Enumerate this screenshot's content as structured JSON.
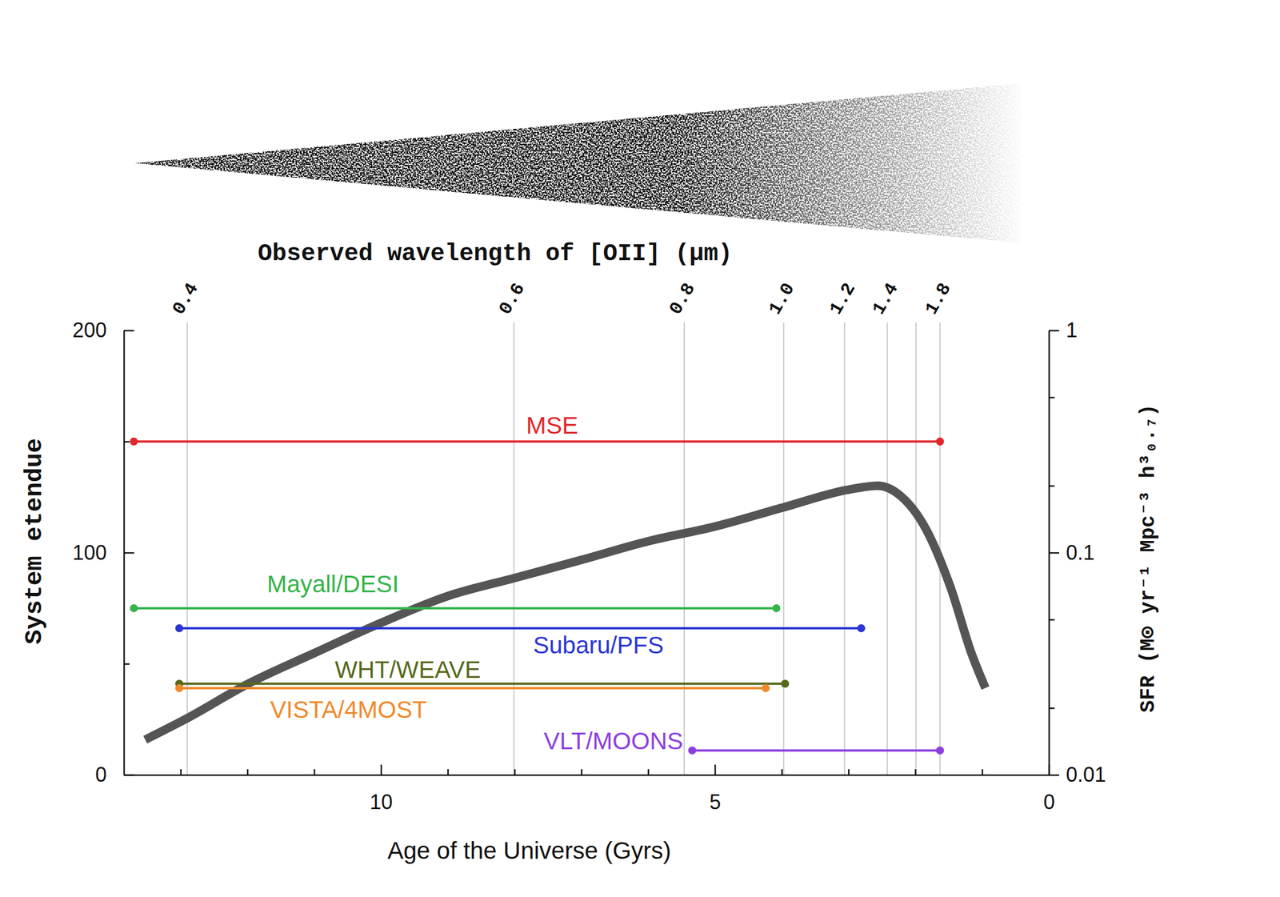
{
  "chart_data": {
    "type": "line",
    "xlabel": "Age of the Universe (Gyrs)",
    "ylabel": "System etendue",
    "y2label": "SFR (M⊙ yr⁻¹ Mpc⁻³ h³₀.₇)",
    "x2label": "Observed wavelength of [OII] (μm)",
    "xlim": [
      13.85,
      0
    ],
    "xticks": [
      10,
      5,
      0
    ],
    "x_minor_ticks": [
      13,
      12,
      11,
      9,
      8,
      7,
      6,
      4,
      3,
      2,
      1
    ],
    "ylim": [
      0,
      200
    ],
    "yticks": [
      0,
      100,
      200
    ],
    "y_minor_ticks": [
      50,
      150
    ],
    "y2lim": [
      0.01,
      1
    ],
    "y2ticks": [
      0.01,
      0.1,
      1
    ],
    "y2_minor_ticks": [
      0.02,
      0.05,
      0.2,
      0.5
    ],
    "log": "y2",
    "grid": true,
    "x2ticks": [
      {
        "value": 12.9,
        "label": "0.4"
      },
      {
        "value": 8.01,
        "label": "0.6"
      },
      {
        "value": 5.46,
        "label": "0.8"
      },
      {
        "value": 3.97,
        "label": "1.0"
      },
      {
        "value": 3.06,
        "label": "1.2"
      },
      {
        "value": 2.42,
        "label": "1.4"
      },
      {
        "value": 1.63,
        "label": "1.8"
      }
    ],
    "x2_minor_ticks": [
      1.99
    ],
    "series": [
      {
        "name": "MSE",
        "type": "range",
        "color": "#e2262b",
        "marker": "circle",
        "line_style": "solid",
        "x": [
          13.7,
          1.63
        ],
        "values": [
          150,
          150
        ]
      },
      {
        "name": "Mayall/DESI",
        "type": "range",
        "color": "#34b44a",
        "marker": "circle",
        "line_style": "solid",
        "x": [
          13.7,
          4.08
        ],
        "values": [
          75,
          75
        ]
      },
      {
        "name": "Subaru/PFS",
        "type": "range",
        "color": "#2a36d4",
        "marker": "circle",
        "line_style": "solid",
        "x": [
          13.02,
          2.81
        ],
        "values": [
          66,
          66
        ]
      },
      {
        "name": "WHT/WEAVE",
        "type": "range",
        "color": "#56691b",
        "marker": "circle",
        "line_style": "solid",
        "x": [
          13.02,
          3.95
        ],
        "values": [
          41,
          41
        ]
      },
      {
        "name": "VISTA/4MOST",
        "type": "range",
        "color": "#f0892b",
        "marker": "circle",
        "line_style": "solid",
        "x": [
          13.02,
          4.24
        ],
        "values": [
          39,
          39
        ]
      },
      {
        "name": "VLT/MOONS",
        "type": "range",
        "color": "#8b3fe0",
        "marker": "circle",
        "line_style": "solid",
        "x": [
          5.34,
          1.63
        ],
        "values": [
          11,
          11
        ]
      },
      {
        "type": "line",
        "axis": "y2",
        "color": "#555555",
        "line_style": "solid",
        "x": [
          13.53,
          12.9,
          12,
          11,
          10,
          9,
          8,
          7,
          6,
          5,
          4,
          3,
          2.56,
          2.26,
          1.83,
          1.47,
          1.16,
          0.95
        ],
        "values": [
          0.0144,
          0.018,
          0.0256,
          0.0353,
          0.0483,
          0.0638,
          0.0769,
          0.0927,
          0.1125,
          0.131,
          0.159,
          0.192,
          0.2,
          0.184,
          0.126,
          0.0695,
          0.0353,
          0.0246
        ]
      }
    ]
  }
}
